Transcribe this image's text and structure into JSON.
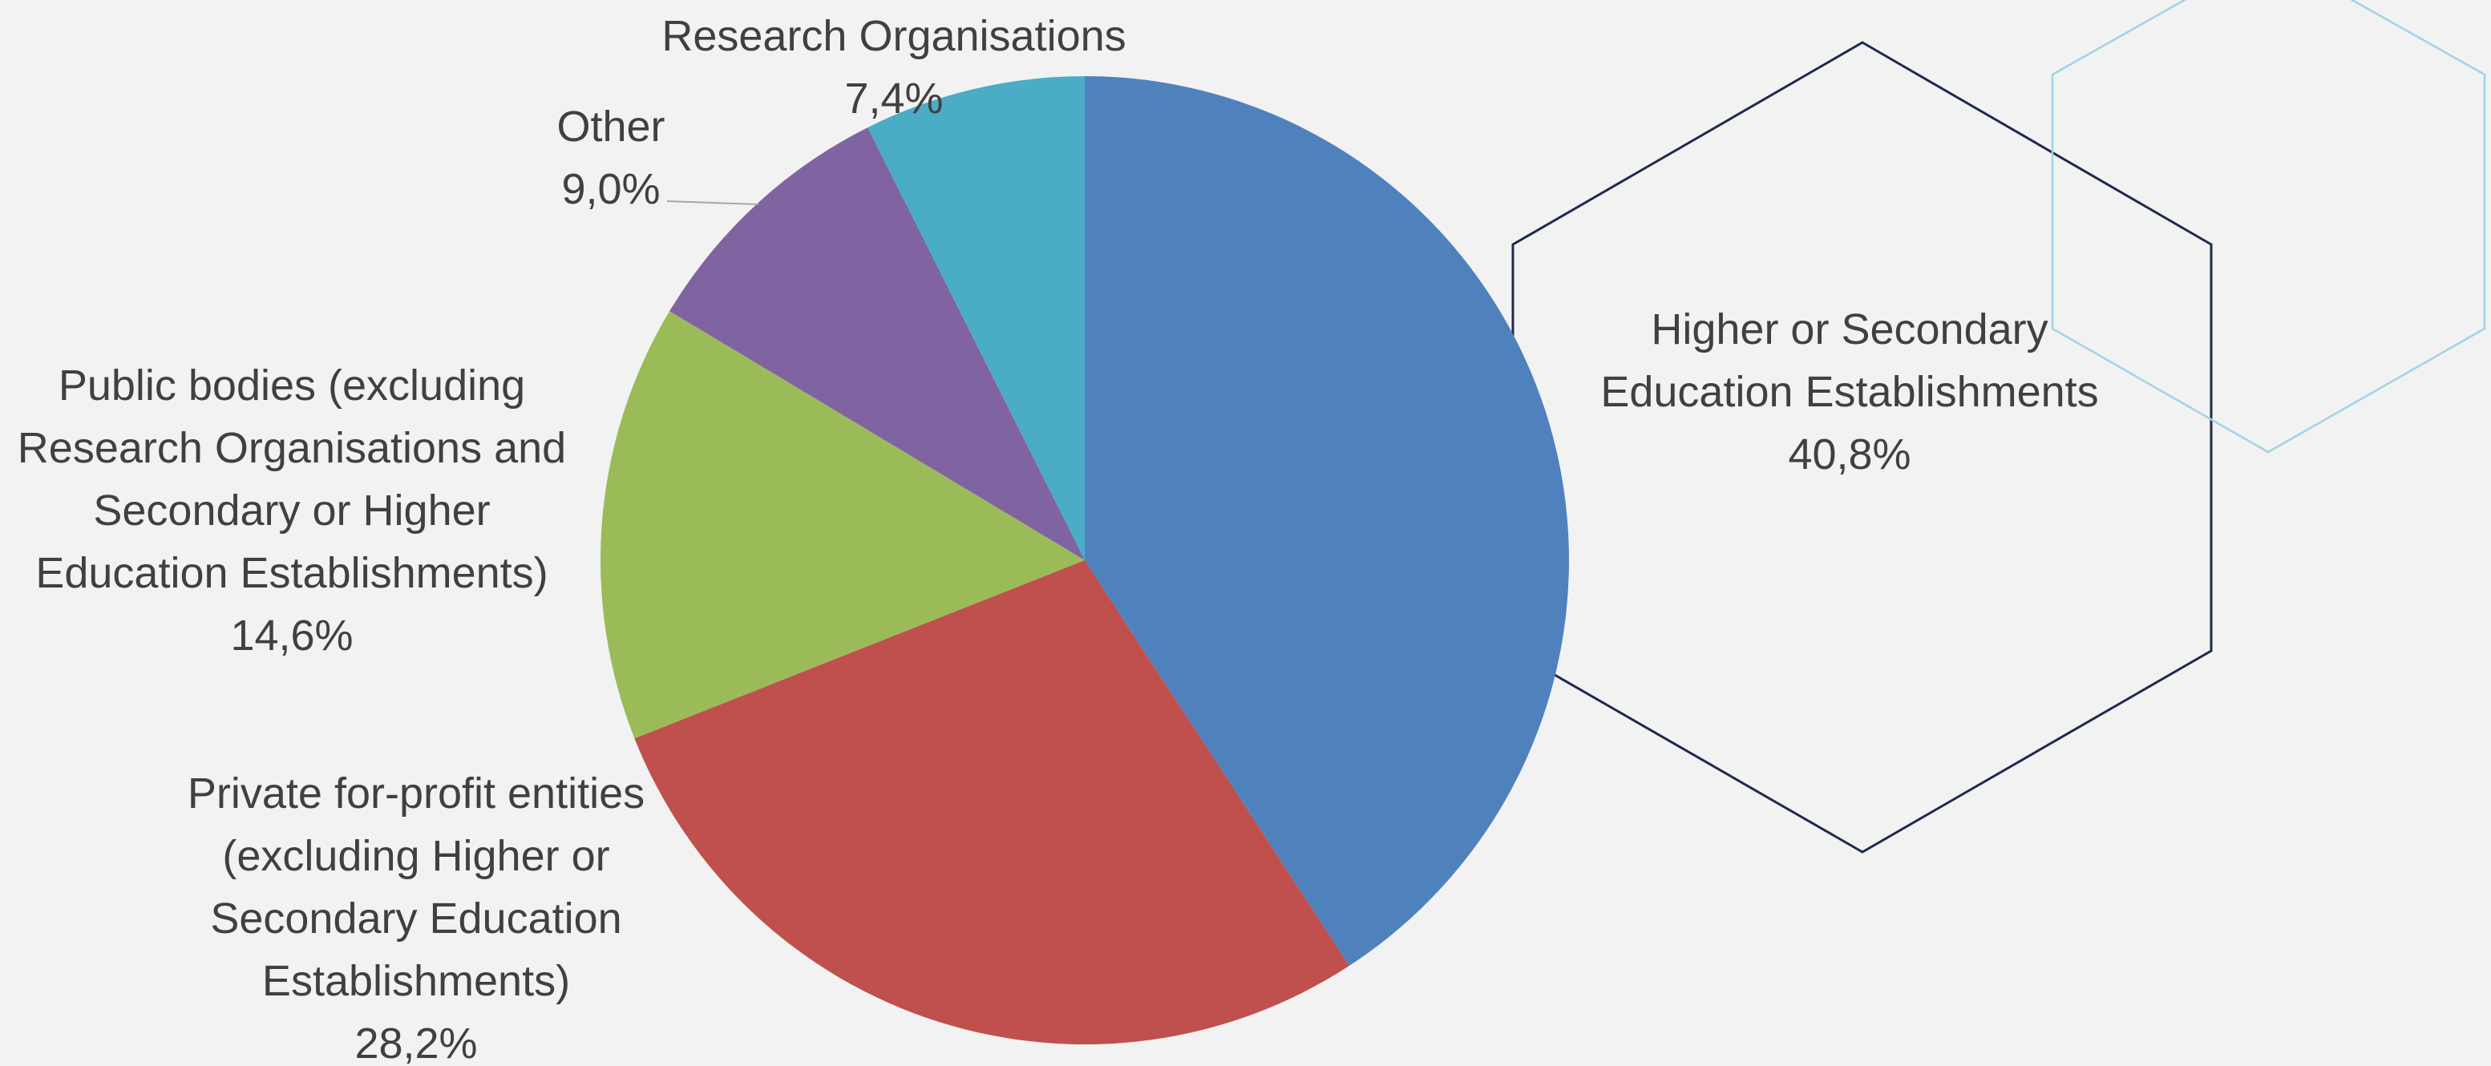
{
  "chart_data": {
    "type": "pie",
    "categories": [
      "Higher or Secondary Education Establishments",
      "Private for-profit entities (excluding Higher or Secondary Education Establishments)",
      "Public bodies (excluding Research Organisations and Secondary or Higher Education Establishments)",
      "Other",
      "Research Organisations"
    ],
    "values": [
      40.8,
      28.2,
      14.6,
      9.0,
      7.4
    ],
    "value_labels": [
      "40,8%",
      "28,2%",
      "14,6%",
      "9,0%",
      "7,4%"
    ],
    "colors": [
      "#4f81bd",
      "#c0504d",
      "#9bbb59",
      "#8064a2",
      "#4bacc6"
    ]
  }
}
